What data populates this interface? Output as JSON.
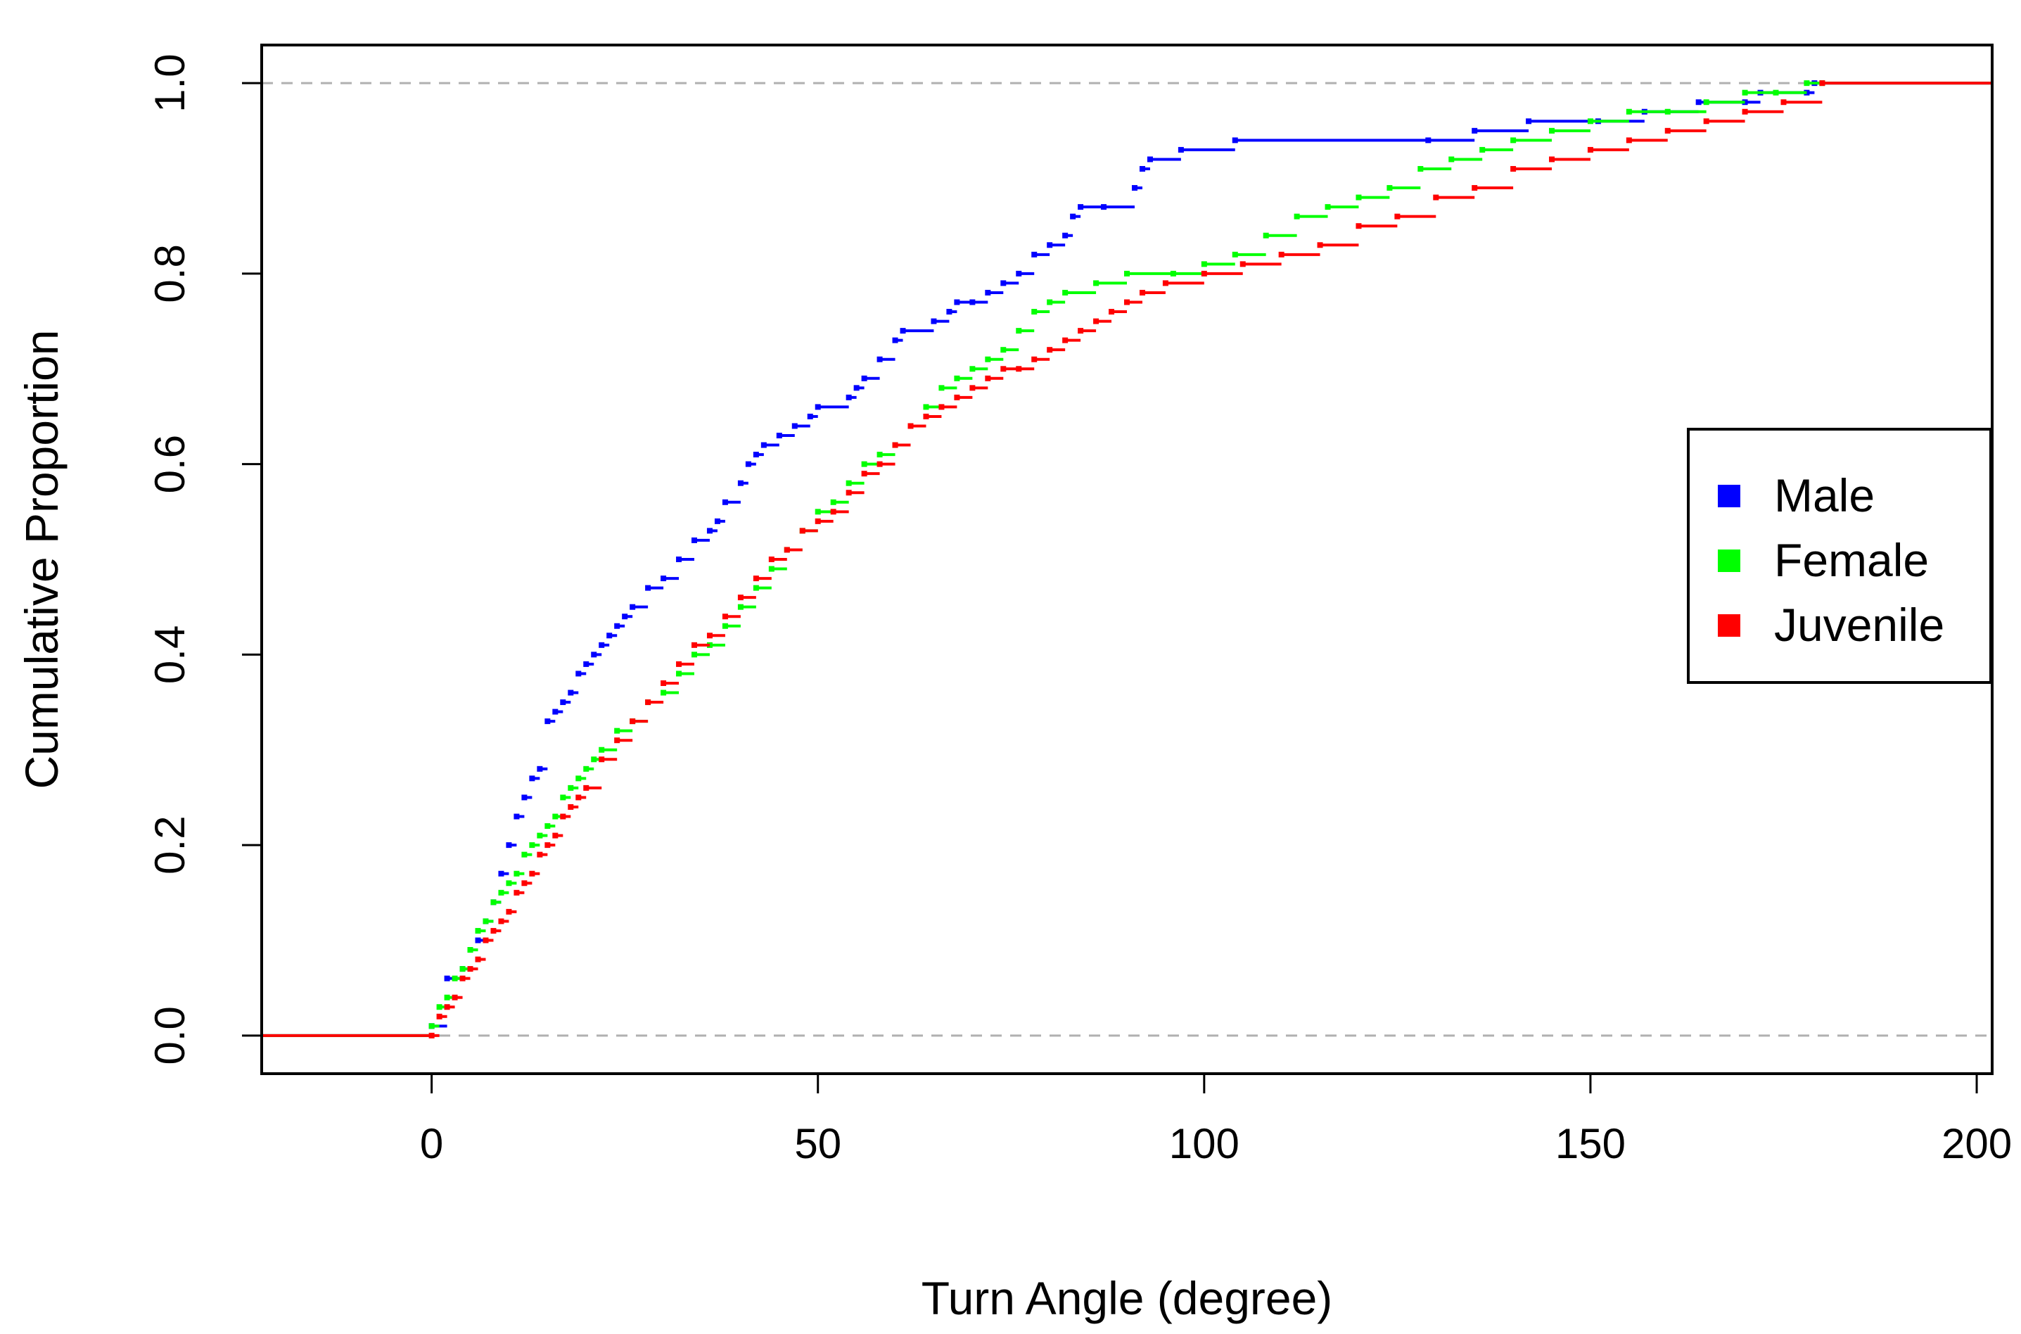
{
  "chart_data": {
    "type": "line",
    "subtype": "empirical-cdf-step",
    "title": "",
    "xlabel": "Turn Angle (degree)",
    "ylabel": "Cumulative Proportion",
    "xlim": [
      -22,
      202
    ],
    "ylim": [
      -0.04,
      1.04
    ],
    "xticks": [
      0,
      50,
      100,
      150,
      200
    ],
    "xtick_labels": [
      "0",
      "50",
      "100",
      "150",
      "200"
    ],
    "yticks": [
      0.0,
      0.2,
      0.4,
      0.6,
      0.8,
      1.0
    ],
    "ytick_labels": [
      "0.0",
      "0.2",
      "0.4",
      "0.6",
      "0.8",
      "1.0"
    ],
    "reference_lines": [
      0,
      1
    ],
    "reference_line_color": "#b0b0b0",
    "legend_position": "right",
    "series": [
      {
        "name": "Male",
        "color": "#0000ff",
        "x": [
          0,
          2,
          4,
          5,
          6,
          7,
          8,
          9,
          10,
          11,
          12,
          13,
          14,
          15,
          16,
          17,
          18,
          19,
          20,
          21,
          22,
          23,
          24,
          25,
          26,
          28,
          30,
          32,
          34,
          36,
          37,
          38,
          40,
          41,
          42,
          43,
          45,
          47,
          49,
          50,
          54,
          55,
          56,
          58,
          60,
          61,
          65,
          67,
          68,
          70,
          72,
          74,
          76,
          78,
          80,
          82,
          83,
          84,
          87,
          91,
          92,
          93,
          97,
          104,
          129,
          135,
          142,
          151,
          157,
          164,
          170,
          172,
          178,
          179
        ],
        "y": [
          0.01,
          0.06,
          0.07,
          0.09,
          0.1,
          0.12,
          0.14,
          0.17,
          0.2,
          0.23,
          0.25,
          0.27,
          0.28,
          0.33,
          0.34,
          0.35,
          0.36,
          0.38,
          0.39,
          0.4,
          0.41,
          0.42,
          0.43,
          0.44,
          0.45,
          0.47,
          0.48,
          0.5,
          0.52,
          0.53,
          0.54,
          0.56,
          0.58,
          0.6,
          0.61,
          0.62,
          0.63,
          0.64,
          0.65,
          0.66,
          0.67,
          0.68,
          0.69,
          0.71,
          0.73,
          0.74,
          0.75,
          0.76,
          0.77,
          0.77,
          0.78,
          0.79,
          0.8,
          0.82,
          0.83,
          0.84,
          0.86,
          0.87,
          0.87,
          0.89,
          0.91,
          0.92,
          0.93,
          0.94,
          0.94,
          0.95,
          0.96,
          0.96,
          0.97,
          0.98,
          0.98,
          0.99,
          0.99,
          1.0
        ]
      },
      {
        "name": "Female",
        "color": "#00ff00",
        "x": [
          0,
          1,
          2,
          3,
          4,
          5,
          6,
          7,
          8,
          9,
          10,
          11,
          12,
          13,
          14,
          15,
          16,
          17,
          18,
          19,
          20,
          21,
          22,
          24,
          26,
          28,
          30,
          32,
          34,
          36,
          38,
          40,
          42,
          44,
          46,
          48,
          50,
          52,
          54,
          56,
          58,
          60,
          62,
          64,
          66,
          68,
          70,
          72,
          74,
          76,
          78,
          80,
          82,
          86,
          90,
          96,
          100,
          104,
          108,
          112,
          116,
          120,
          124,
          128,
          132,
          136,
          140,
          145,
          150,
          155,
          160,
          165,
          170,
          174,
          178,
          180
        ],
        "y": [
          0.01,
          0.03,
          0.04,
          0.06,
          0.07,
          0.09,
          0.11,
          0.12,
          0.14,
          0.15,
          0.16,
          0.17,
          0.19,
          0.2,
          0.21,
          0.22,
          0.23,
          0.25,
          0.26,
          0.27,
          0.28,
          0.29,
          0.3,
          0.32,
          0.33,
          0.35,
          0.36,
          0.38,
          0.4,
          0.41,
          0.43,
          0.45,
          0.47,
          0.49,
          0.51,
          0.53,
          0.55,
          0.56,
          0.58,
          0.6,
          0.61,
          0.62,
          0.64,
          0.66,
          0.68,
          0.69,
          0.7,
          0.71,
          0.72,
          0.74,
          0.76,
          0.77,
          0.78,
          0.79,
          0.8,
          0.8,
          0.81,
          0.82,
          0.84,
          0.86,
          0.87,
          0.88,
          0.89,
          0.91,
          0.92,
          0.93,
          0.94,
          0.95,
          0.96,
          0.97,
          0.97,
          0.98,
          0.99,
          0.99,
          1.0,
          1.0
        ]
      },
      {
        "name": "Juvenile",
        "color": "#ff0000",
        "x": [
          0,
          1,
          2,
          3,
          4,
          5,
          6,
          7,
          8,
          9,
          10,
          11,
          12,
          13,
          14,
          15,
          16,
          17,
          18,
          19,
          20,
          22,
          24,
          26,
          28,
          30,
          32,
          34,
          36,
          38,
          40,
          42,
          44,
          46,
          48,
          50,
          52,
          54,
          56,
          58,
          60,
          62,
          64,
          66,
          68,
          70,
          72,
          74,
          76,
          78,
          80,
          82,
          84,
          86,
          88,
          90,
          92,
          95,
          100,
          105,
          110,
          115,
          120,
          125,
          130,
          135,
          140,
          145,
          150,
          155,
          160,
          165,
          170,
          175,
          180
        ],
        "y": [
          0.0,
          0.02,
          0.03,
          0.04,
          0.06,
          0.07,
          0.08,
          0.1,
          0.11,
          0.12,
          0.13,
          0.15,
          0.16,
          0.17,
          0.19,
          0.2,
          0.21,
          0.23,
          0.24,
          0.25,
          0.26,
          0.29,
          0.31,
          0.33,
          0.35,
          0.37,
          0.39,
          0.41,
          0.42,
          0.44,
          0.46,
          0.48,
          0.5,
          0.51,
          0.53,
          0.54,
          0.55,
          0.57,
          0.59,
          0.6,
          0.62,
          0.64,
          0.65,
          0.66,
          0.67,
          0.68,
          0.69,
          0.7,
          0.7,
          0.71,
          0.72,
          0.73,
          0.74,
          0.75,
          0.76,
          0.77,
          0.78,
          0.79,
          0.8,
          0.81,
          0.82,
          0.83,
          0.85,
          0.86,
          0.88,
          0.89,
          0.91,
          0.92,
          0.93,
          0.94,
          0.95,
          0.96,
          0.97,
          0.98,
          1.0
        ]
      }
    ]
  }
}
